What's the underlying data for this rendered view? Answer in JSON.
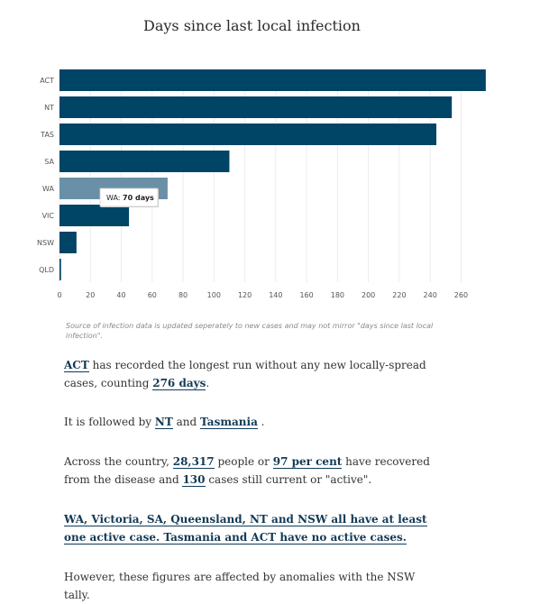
{
  "chart_data": {
    "type": "bar",
    "orientation": "horizontal",
    "title": "Days since last local infection",
    "categories": [
      "ACT",
      "NT",
      "TAS",
      "SA",
      "WA",
      "VIC",
      "NSW",
      "QLD"
    ],
    "values": [
      276,
      254,
      244,
      110,
      70,
      45,
      11,
      1
    ],
    "xlim": [
      0,
      272
    ],
    "x_ticks": [
      0,
      20,
      40,
      60,
      80,
      100,
      120,
      140,
      160,
      180,
      200,
      220,
      240,
      260
    ],
    "grid": "vertical",
    "bar_color": "#004466",
    "highlight_color": "#6a90a8",
    "highlighted_category": "WA",
    "tooltip": {
      "prefix": "WA: ",
      "value_text": "70 days"
    }
  },
  "source_note": "Source of infection data is updated seperately to new cases and may not mirror \"days since last local infection\".",
  "paragraphs": {
    "p1": {
      "link1": "ACT",
      "text1": " has recorded the longest run without any new locally-spread cases, counting ",
      "link2": "276 days",
      "text2": "."
    },
    "p2": {
      "text0": "It is followed by ",
      "link1": "NT",
      "text1": " and ",
      "link2": "Tasmania",
      "text2": " ."
    },
    "p3": {
      "text0": "Across the country, ",
      "link1": "28,317",
      "text1": " people or ",
      "link2": "97 per cent",
      "text2": " have recovered from the disease and ",
      "link3": "130",
      "text3": " cases still current or \"active\"."
    },
    "p4": {
      "link1": "WA, Victoria, SA, Queensland, NT and NSW all have at least one active case. Tasmania and ACT have no active cases."
    },
    "p5": {
      "text0": "However, these figures are affected by anomalies with the NSW tally."
    }
  }
}
